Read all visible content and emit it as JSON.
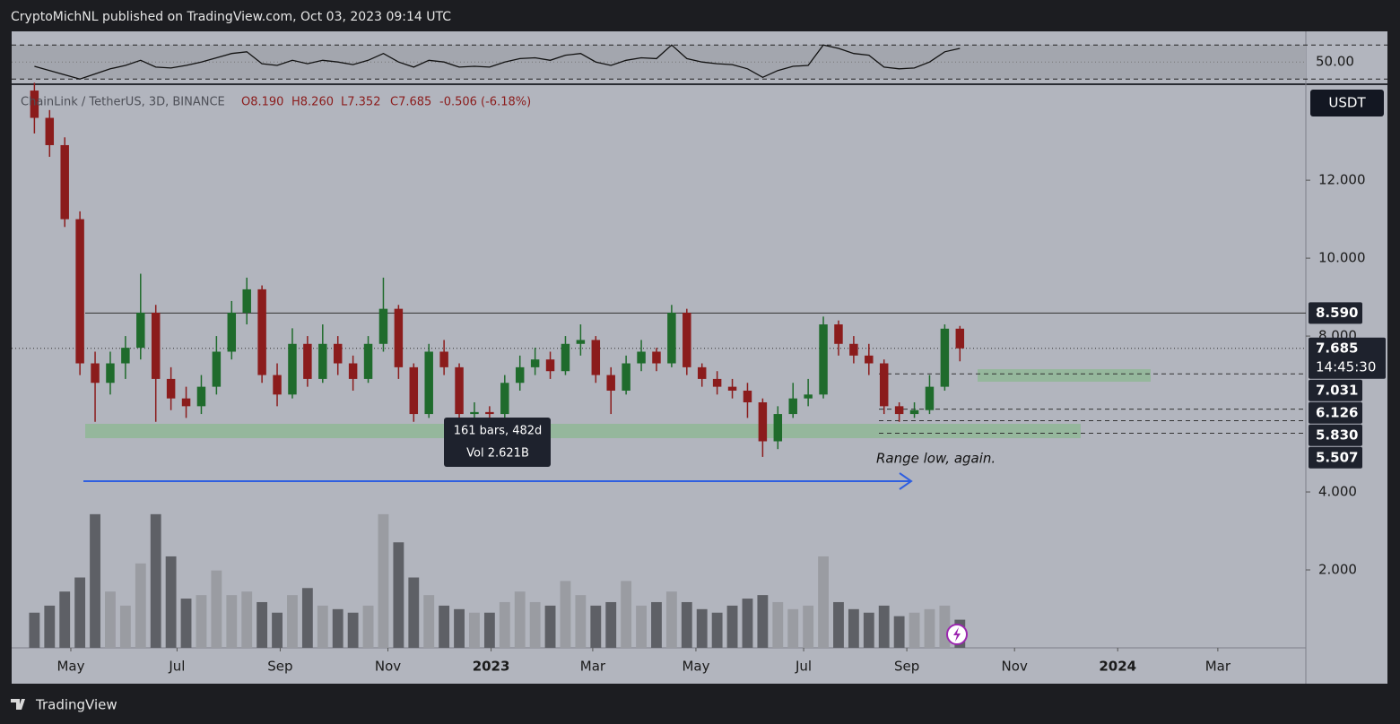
{
  "header": {
    "text": "CryptoMichNL published on TradingView.com, Oct 03, 2023 09:14 UTC"
  },
  "footer": {
    "brand": "TradingView"
  },
  "chart_data": {
    "type": "candlestick",
    "legend": {
      "symbol": "ChainLink / TetherUS, 3D, BINANCE",
      "open": "O8.190",
      "high": "H8.260",
      "low": "L7.352",
      "close": "C7.685",
      "change": "-0.506 (-6.18%)"
    },
    "currency": "USDT",
    "annotation": "Range low, again.",
    "tooltip": {
      "line1": "161 bars, 482d",
      "line2": "Vol 2.621B"
    },
    "open": [
      14.3,
      13.6,
      12.9,
      11.0,
      7.3,
      6.8,
      7.3,
      7.7,
      8.6,
      6.9,
      6.4,
      6.2,
      6.7,
      7.6,
      8.6,
      9.2,
      7.0,
      6.5,
      7.8,
      6.9,
      7.8,
      7.3,
      6.9,
      7.8,
      8.7,
      7.2,
      6.0,
      7.6,
      7.2,
      6.0,
      6.05,
      6.0,
      6.8,
      7.2,
      7.4,
      7.1,
      7.8,
      7.9,
      7.0,
      6.6,
      7.3,
      7.6,
      7.3,
      8.6,
      7.2,
      6.9,
      6.7,
      6.6,
      6.3,
      5.3,
      6.0,
      6.4,
      6.5,
      8.3,
      7.8,
      7.5,
      7.3,
      6.2,
      6.0,
      6.1,
      6.7,
      8.19
    ],
    "high": [
      14.5,
      13.8,
      13.1,
      11.2,
      7.6,
      7.6,
      8.0,
      9.6,
      8.8,
      7.2,
      6.7,
      7.0,
      8.0,
      8.9,
      9.5,
      9.3,
      7.3,
      8.2,
      8.0,
      8.3,
      8.0,
      7.5,
      8.0,
      9.5,
      8.8,
      7.3,
      7.8,
      7.9,
      7.3,
      6.3,
      6.2,
      7.0,
      7.5,
      7.7,
      7.6,
      8.0,
      8.3,
      8.0,
      7.2,
      7.5,
      7.9,
      7.7,
      8.8,
      8.7,
      7.3,
      7.1,
      6.9,
      6.8,
      6.4,
      6.2,
      6.8,
      6.9,
      8.5,
      8.4,
      8.0,
      7.8,
      7.4,
      6.3,
      6.3,
      7.0,
      8.3,
      8.26
    ],
    "low": [
      13.2,
      12.6,
      10.8,
      7.0,
      5.8,
      6.5,
      6.9,
      7.4,
      5.8,
      6.1,
      5.9,
      6.0,
      6.5,
      7.4,
      8.3,
      6.8,
      6.2,
      6.4,
      6.7,
      6.8,
      7.0,
      6.6,
      6.8,
      7.6,
      6.9,
      5.8,
      5.9,
      7.0,
      5.8,
      5.8,
      5.7,
      5.9,
      6.6,
      7.0,
      6.9,
      7.0,
      7.5,
      6.8,
      6.0,
      6.5,
      7.1,
      7.1,
      7.2,
      7.0,
      6.7,
      6.5,
      6.4,
      5.9,
      4.9,
      5.1,
      5.9,
      6.2,
      6.4,
      7.5,
      7.3,
      7.0,
      6.0,
      5.8,
      5.9,
      6.0,
      6.6,
      7.352
    ],
    "close": [
      13.6,
      12.9,
      11.0,
      7.3,
      6.8,
      7.3,
      7.7,
      8.6,
      6.9,
      6.4,
      6.2,
      6.7,
      7.6,
      8.6,
      9.2,
      7.0,
      6.5,
      7.8,
      6.9,
      7.8,
      7.3,
      6.9,
      7.8,
      8.7,
      7.2,
      6.0,
      7.6,
      7.2,
      6.0,
      6.05,
      6.0,
      6.8,
      7.2,
      7.4,
      7.1,
      7.8,
      7.9,
      7.0,
      6.6,
      7.3,
      7.6,
      7.3,
      8.6,
      7.2,
      6.9,
      6.7,
      6.6,
      6.3,
      5.3,
      6.0,
      6.4,
      6.5,
      8.3,
      7.8,
      7.5,
      7.3,
      6.2,
      6.0,
      6.1,
      6.7,
      8.19,
      7.685
    ],
    "volume": [
      1.0,
      1.2,
      1.6,
      2.0,
      3.8,
      1.6,
      1.2,
      2.4,
      3.8,
      2.6,
      1.4,
      1.5,
      2.2,
      1.5,
      1.6,
      1.3,
      1.0,
      1.5,
      1.7,
      1.2,
      1.1,
      1.0,
      1.2,
      3.8,
      3.0,
      2.0,
      1.5,
      1.2,
      1.1,
      1.0,
      1.0,
      1.3,
      1.6,
      1.3,
      1.2,
      1.9,
      1.5,
      1.2,
      1.3,
      1.9,
      1.2,
      1.3,
      1.6,
      1.3,
      1.1,
      1.0,
      1.2,
      1.4,
      1.5,
      1.3,
      1.1,
      1.2,
      2.6,
      1.3,
      1.1,
      1.0,
      1.2,
      0.9,
      1.0,
      1.1,
      1.2,
      0.8
    ],
    "vlim": [
      0,
      16
    ],
    "up_color": "#1f6b2c",
    "down_color": "#8b1c1c",
    "ylim": [
      0,
      14.44
    ],
    "yticks": [
      {
        "value": 2,
        "label": "2.000"
      },
      {
        "value": 4,
        "label": "4.000"
      },
      {
        "value": 8,
        "label": "8.000"
      },
      {
        "value": 10,
        "label": "10.000"
      },
      {
        "value": 12,
        "label": "12.000"
      }
    ],
    "xlim": [
      -1.5,
      83.8
    ],
    "xticks": [
      {
        "value": 2.4,
        "label": "May"
      },
      {
        "value": 9.4,
        "label": "Jul"
      },
      {
        "value": 16.2,
        "label": "Sep"
      },
      {
        "value": 23.3,
        "label": "Nov"
      },
      {
        "value": 30.1,
        "label": "2023"
      },
      {
        "value": 36.8,
        "label": "Mar"
      },
      {
        "value": 43.6,
        "label": "May"
      },
      {
        "value": 50.7,
        "label": "Jul"
      },
      {
        "value": 57.5,
        "label": "Sep"
      },
      {
        "value": 64.6,
        "label": "Nov"
      },
      {
        "value": 71.4,
        "label": "2024"
      },
      {
        "value": 78.0,
        "label": "Mar"
      }
    ],
    "price_lines": [
      {
        "value": 8.59,
        "label": "8.590",
        "style": "solid"
      },
      {
        "value": 7.685,
        "label": "7.685",
        "style": "dotted",
        "countdown": "14:45:30"
      },
      {
        "value": 7.031,
        "label": "7.031",
        "style": "dashed"
      },
      {
        "value": 6.126,
        "label": "6.126",
        "style": "dashed"
      },
      {
        "value": 5.83,
        "label": "5.830",
        "style": "dashed"
      },
      {
        "value": 5.507,
        "label": "5.507",
        "style": "dashed"
      }
    ],
    "rsi": {
      "values": [
        45,
        40,
        35,
        30,
        36,
        42,
        46,
        52,
        44,
        43,
        46,
        50,
        55,
        60,
        62,
        48,
        46,
        52,
        48,
        52,
        50,
        47,
        52,
        60,
        50,
        44,
        52,
        50,
        44,
        45,
        44,
        50,
        54,
        55,
        52,
        58,
        60,
        50,
        46,
        52,
        55,
        54,
        70,
        54,
        50,
        48,
        47,
        42,
        32,
        40,
        45,
        46,
        70,
        66,
        60,
        58,
        44,
        42,
        43,
        50,
        62,
        66
      ],
      "ylim": [
        25,
        86
      ],
      "band": [
        30,
        70
      ],
      "yticks": [
        {
          "value": 50,
          "label": "50.00"
        }
      ]
    }
  }
}
